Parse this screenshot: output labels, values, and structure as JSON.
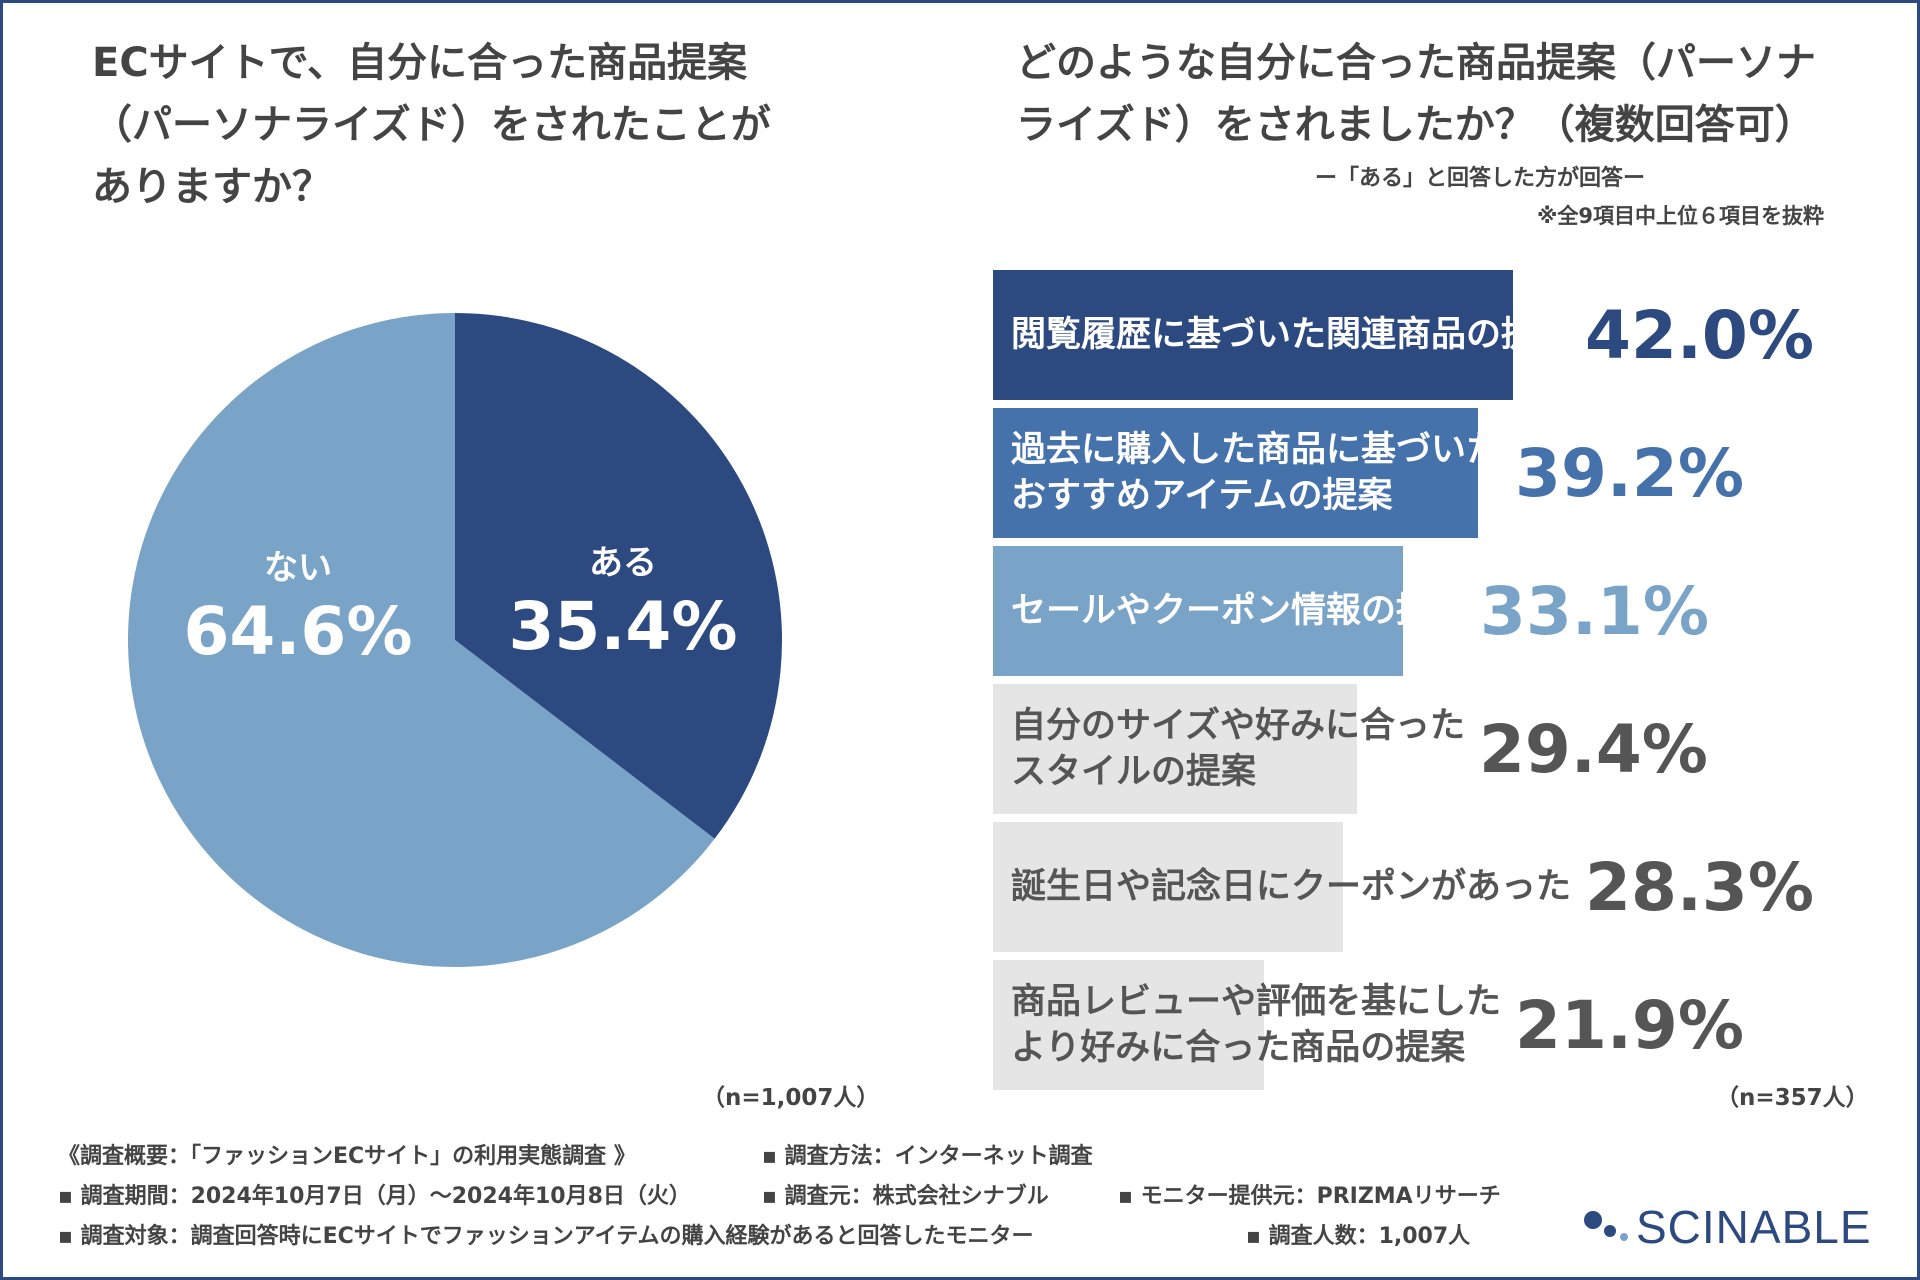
{
  "left": {
    "title_lines": [
      "ECサイトで、自分に合った商品提案",
      "（パーソナライズド）をされたことが",
      "ありますか？"
    ],
    "n_label": "（n=1,007人）"
  },
  "right": {
    "title_lines": [
      "どのような自分に合った商品提案（パーソナ",
      "ライズド）をされましたか？（複数回答可）"
    ],
    "subtitle": "ー「ある」と回答した方が回答ー",
    "note": "※全9項目中上位６項目を抜粋",
    "n_label": "（n=357人）"
  },
  "colors": {
    "aru": "#2d4a80",
    "nai": "#7aa3c8",
    "bar1": "#2d4a80",
    "bar2": "#4672ac",
    "bar3": "#7aa3c8",
    "bar_gray": "#e5e5e5",
    "value_gray": "#555555"
  },
  "chart_data": [
    {
      "type": "pie",
      "slices": [
        {
          "label": "ある",
          "value": 35.4,
          "display": "35.4%"
        },
        {
          "label": "ない",
          "value": 64.6,
          "display": "64.6%"
        }
      ]
    },
    {
      "type": "bar",
      "orientation": "horizontal",
      "categories": [
        [
          "閲覧履歴に基づいた関連商品の提案"
        ],
        [
          "過去に購入した商品に基づいた",
          "おすすめアイテムの提案"
        ],
        [
          "セールやクーポン情報の提案"
        ],
        [
          "自分のサイズや好みに合った",
          "スタイルの提案"
        ],
        [
          "誕生日や記念日にクーポンがあった"
        ],
        [
          "商品レビューや評価を基にした",
          "より好みに合った商品の提案"
        ]
      ],
      "values": [
        42.0,
        39.2,
        33.1,
        29.4,
        28.3,
        21.9
      ],
      "labels": [
        "42.0%",
        "39.2%",
        "33.1%",
        "29.4%",
        "28.3%",
        "21.9%"
      ]
    }
  ],
  "footer": {
    "line1_a": "《調査概要：「ファッションECサイト」の利用実態調査 》",
    "line1_b": "▪ 調査方法：インターネット調査",
    "line2_a": "▪ 調査期間：2024年10月7日（月）～2024年10月8日（火）",
    "line2_b": "▪ 調査元：株式会社シナブル",
    "line2_c": "▪ モニター提供元：PRIZMAリサーチ",
    "line3_a": "▪ 調査対象：調査回答時にECサイトでファッションアイテムの購入経験があると回答したモニター",
    "line3_b": "▪ 調査人数：1,007人"
  },
  "logo": {
    "text": "SCINABLE"
  }
}
